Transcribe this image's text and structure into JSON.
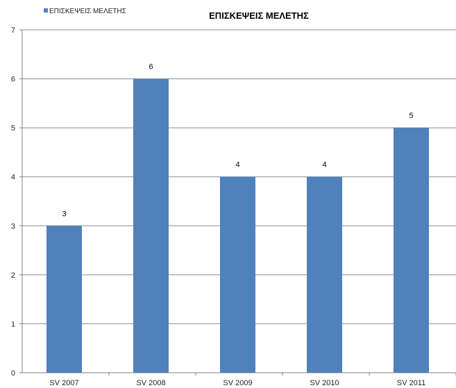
{
  "chart_data": {
    "type": "bar",
    "title": "ΕΠΙΣΚΕΨΕΙΣ ΜΕΛΕΤΗΣ",
    "categories": [
      "SV 2007",
      "SV 2008",
      "SV 2009",
      "SV 2010",
      "SV 2011"
    ],
    "series": [
      {
        "name": "ΕΠΙΣΚΕΨΕΙΣ ΜΕΛΕΤΗΣ",
        "values": [
          3,
          6,
          4,
          4,
          5
        ],
        "color": "#4f81bd"
      }
    ],
    "ylim": [
      0,
      7
    ],
    "yticks": [
      0,
      1,
      2,
      3,
      4,
      5,
      6,
      7
    ],
    "xlabel": "",
    "ylabel": "",
    "grid": true,
    "legend_position": "top-left",
    "data_labels": true
  }
}
